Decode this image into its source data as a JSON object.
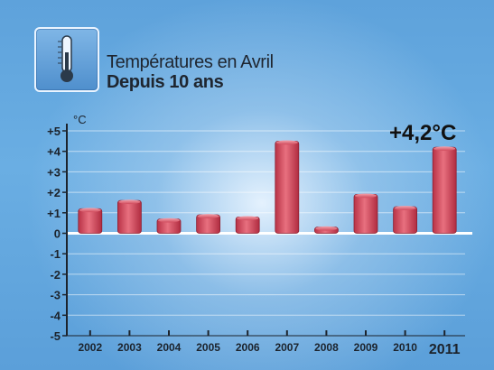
{
  "header": {
    "icon": "thermometer-icon",
    "title": "Températures en Avril",
    "subtitle": "Depuis 10 ans"
  },
  "chart_data": {
    "type": "bar",
    "title": "Températures en Avril",
    "subtitle": "Depuis 10 ans",
    "unit_label": "°C",
    "categories": [
      "2002",
      "2003",
      "2004",
      "2005",
      "2006",
      "2007",
      "2008",
      "2009",
      "2010",
      "2011"
    ],
    "values": [
      1.2,
      1.6,
      0.7,
      0.9,
      0.8,
      4.5,
      0.3,
      1.9,
      1.3,
      4.2
    ],
    "highlight_category": "2011",
    "ylim": [
      -5,
      5
    ],
    "yticks": [
      "-5",
      "-4",
      "-3",
      "-2",
      "-1",
      "0",
      "+1",
      "+2",
      "+3",
      "+4",
      "+5"
    ],
    "grid": true,
    "bar_color": "#d94b5f",
    "annotation": "+4,2°C"
  }
}
